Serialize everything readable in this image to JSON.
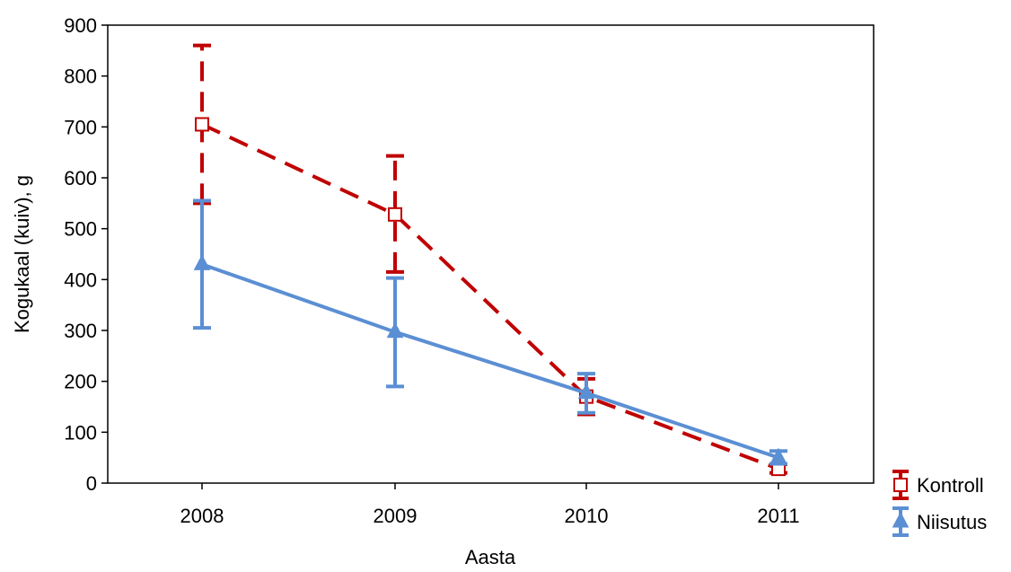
{
  "chart_data": {
    "type": "line",
    "xlabel": "Aasta",
    "ylabel": "Kogukaal (kuiv), g",
    "x": [
      "2008",
      "2009",
      "2010",
      "2011"
    ],
    "ylim": [
      0,
      900
    ],
    "yticks": [
      0,
      100,
      200,
      300,
      400,
      500,
      600,
      700,
      800,
      900
    ],
    "grid": false,
    "legend_position": "bottom-right, outside plot",
    "series": [
      {
        "name": "Kontroll",
        "color": "#C00000",
        "line_style": "dashed",
        "marker": "open-square",
        "values": [
          705,
          528,
          170,
          28
        ],
        "error_low": [
          550,
          415,
          135,
          20
        ],
        "error_high": [
          860,
          643,
          205,
          37
        ]
      },
      {
        "name": "Niisutus",
        "color": "#5B8FD4",
        "line_style": "solid",
        "marker": "filled-triangle",
        "values": [
          430,
          297,
          177,
          50
        ],
        "error_low": [
          305,
          190,
          138,
          38
        ],
        "error_high": [
          555,
          403,
          215,
          63
        ]
      }
    ]
  }
}
